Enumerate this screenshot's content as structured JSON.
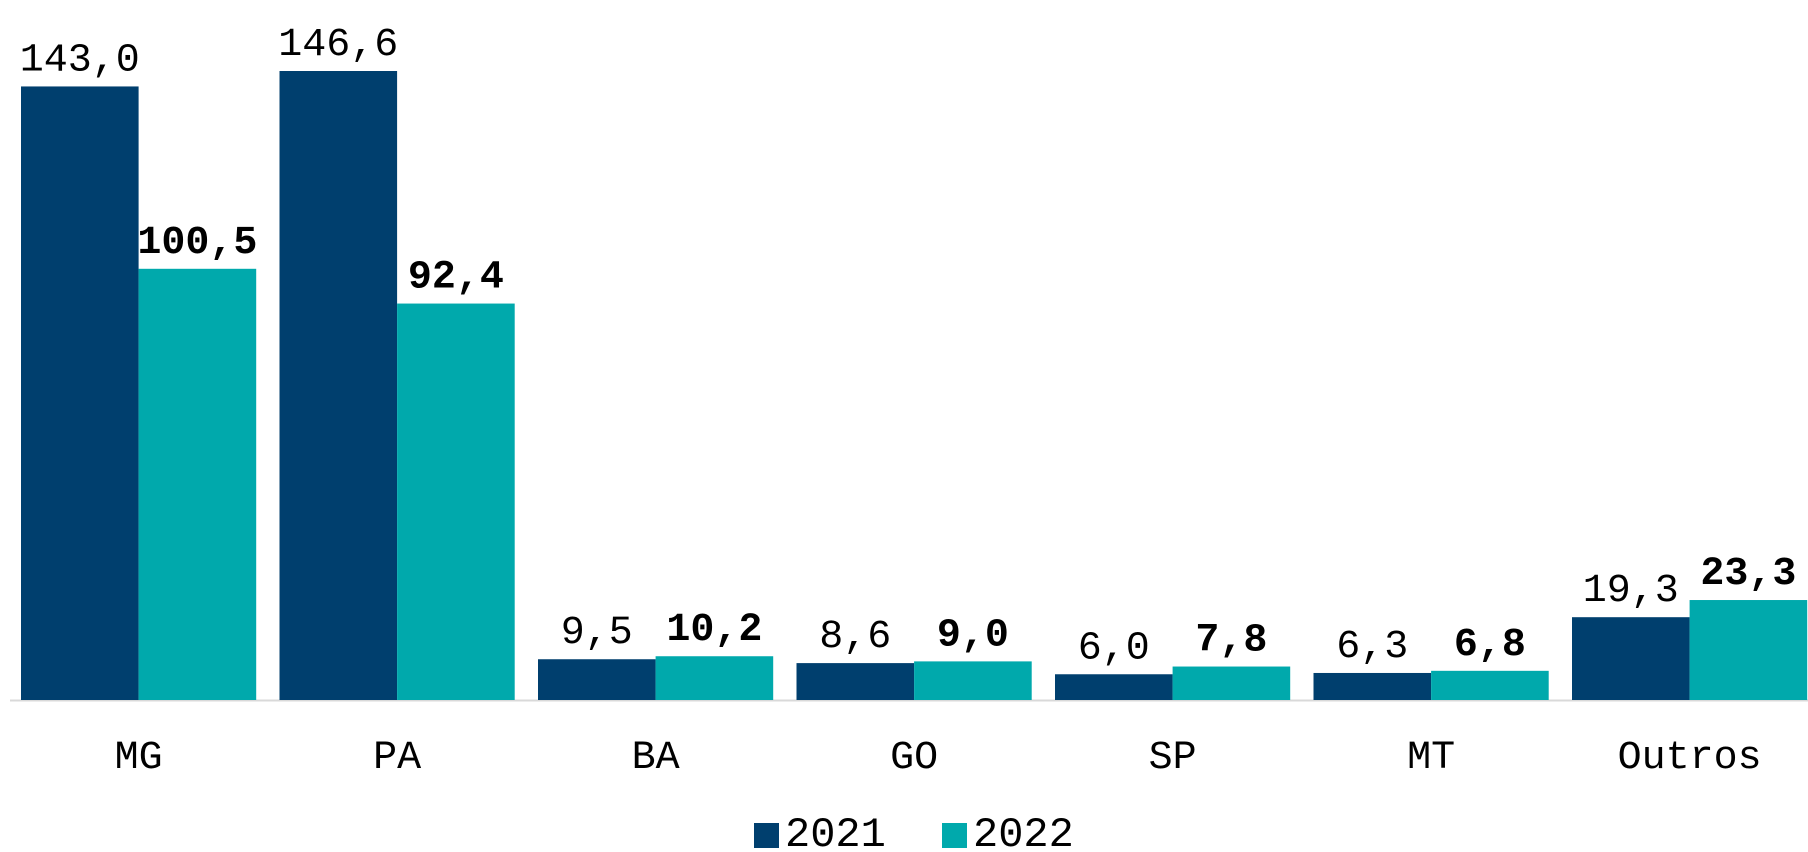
{
  "chart_data": {
    "type": "bar",
    "categories": [
      "MG",
      "PA",
      "BA",
      "GO",
      "SP",
      "MT",
      "Outros"
    ],
    "series": [
      {
        "name": "2021",
        "color": "#003f6e",
        "values": [
          143.0,
          146.6,
          9.5,
          8.6,
          6.0,
          6.3,
          19.3
        ],
        "value_labels": [
          "143,0",
          "146,6",
          "9,5",
          "8,6",
          "6,0",
          "6,3",
          "19,3"
        ]
      },
      {
        "name": "2022",
        "color": "#00a9ac",
        "values": [
          100.5,
          92.4,
          10.2,
          9.0,
          7.8,
          6.8,
          23.3
        ],
        "value_labels": [
          "100,5",
          "92,4",
          "10,2",
          "9,0",
          "7,8",
          "6,8",
          "23,3"
        ]
      }
    ]
  }
}
